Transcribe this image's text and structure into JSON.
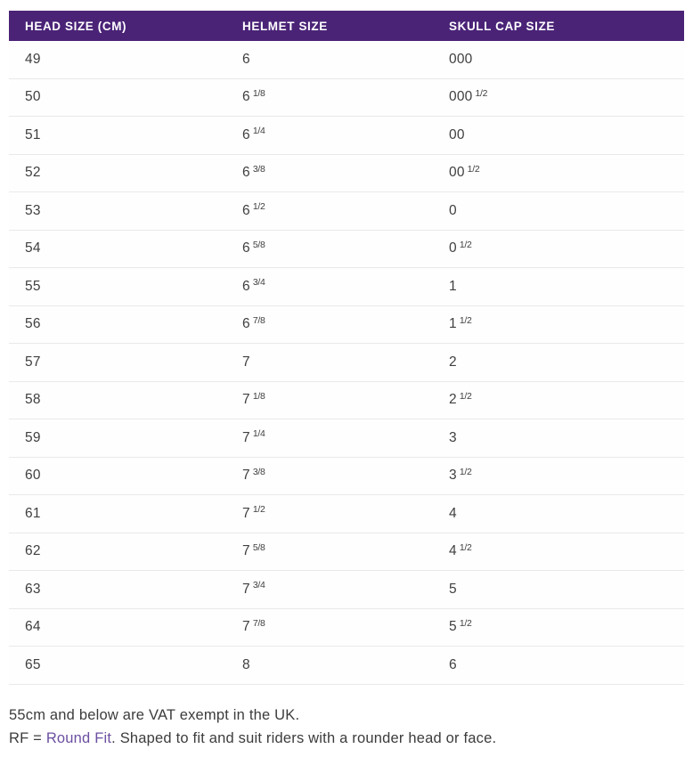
{
  "table": {
    "headers": [
      {
        "label": "HEAD SIZE (CM)"
      },
      {
        "label": "HELMET SIZE"
      },
      {
        "label": "SKULL CAP SIZE"
      }
    ],
    "rows": [
      {
        "head": "49",
        "helmet": [
          "6",
          ""
        ],
        "skull": [
          "000",
          ""
        ]
      },
      {
        "head": "50",
        "helmet": [
          "6",
          "1/8"
        ],
        "skull": [
          "000",
          "1/2"
        ]
      },
      {
        "head": "51",
        "helmet": [
          "6",
          "1/4"
        ],
        "skull": [
          "00",
          ""
        ]
      },
      {
        "head": "52",
        "helmet": [
          "6",
          "3/8"
        ],
        "skull": [
          "00",
          "1/2"
        ]
      },
      {
        "head": "53",
        "helmet": [
          "6",
          "1/2"
        ],
        "skull": [
          "0",
          ""
        ]
      },
      {
        "head": "54",
        "helmet": [
          "6",
          "5/8"
        ],
        "skull": [
          "0",
          "1/2"
        ]
      },
      {
        "head": "55",
        "helmet": [
          "6",
          "3/4"
        ],
        "skull": [
          "1",
          ""
        ]
      },
      {
        "head": "56",
        "helmet": [
          "6",
          "7/8"
        ],
        "skull": [
          "1",
          "1/2"
        ]
      },
      {
        "head": "57",
        "helmet": [
          "7",
          ""
        ],
        "skull": [
          "2",
          ""
        ]
      },
      {
        "head": "58",
        "helmet": [
          "7",
          "1/8"
        ],
        "skull": [
          "2",
          "1/2"
        ]
      },
      {
        "head": "59",
        "helmet": [
          "7",
          "1/4"
        ],
        "skull": [
          "3",
          ""
        ]
      },
      {
        "head": "60",
        "helmet": [
          "7",
          "3/8"
        ],
        "skull": [
          "3",
          "1/2"
        ]
      },
      {
        "head": "61",
        "helmet": [
          "7",
          "1/2"
        ],
        "skull": [
          "4",
          ""
        ]
      },
      {
        "head": "62",
        "helmet": [
          "7",
          "5/8"
        ],
        "skull": [
          "4",
          "1/2"
        ]
      },
      {
        "head": "63",
        "helmet": [
          "7",
          "3/4"
        ],
        "skull": [
          "5",
          ""
        ]
      },
      {
        "head": "64",
        "helmet": [
          "7",
          "7/8"
        ],
        "skull": [
          "5",
          "1/2"
        ]
      },
      {
        "head": "65",
        "helmet": [
          "8",
          ""
        ],
        "skull": [
          "6",
          ""
        ]
      }
    ]
  },
  "footnotes": {
    "vat_note": "55cm and below are VAT exempt in the UK.",
    "rf_prefix": "RF = ",
    "rf_link": "Round Fit",
    "rf_suffix": ". Shaped to fit and suit riders with a rounder head or face."
  },
  "colors": {
    "header_background": "#4a2377",
    "header_text": "#ffffff",
    "row_divider": "#e9e9e9",
    "cell_text": "#3f3f3f",
    "link": "#6b4fa1"
  }
}
